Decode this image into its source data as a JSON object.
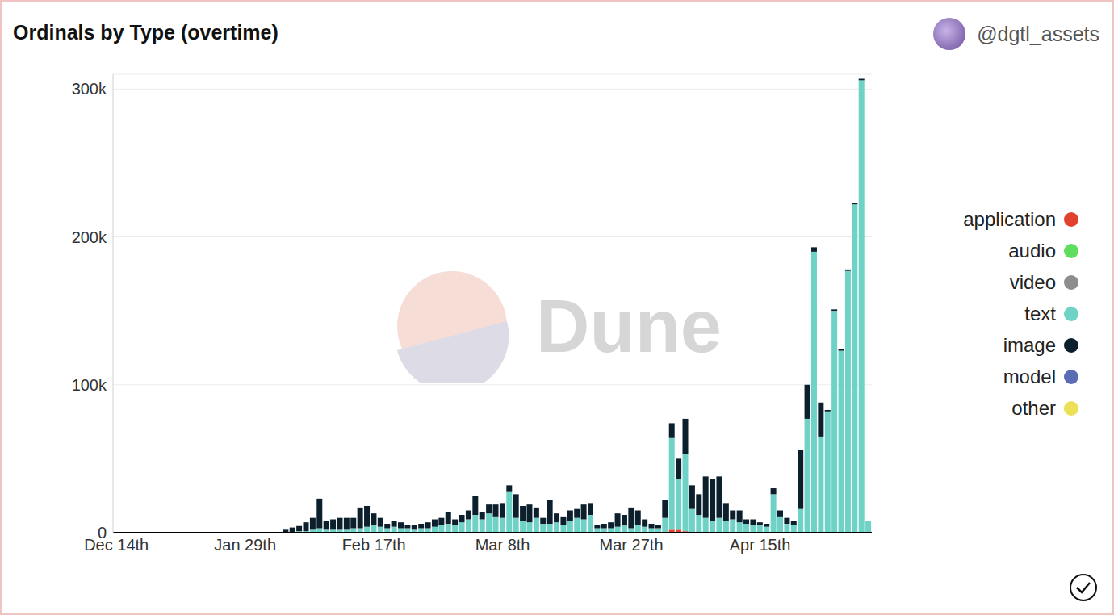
{
  "chart_data": {
    "type": "bar",
    "title": "Ordinals by Type (overtime)",
    "subtitle": "@dgtl_assets",
    "annotations": [
      "Dune"
    ],
    "stacked": true,
    "grid": true,
    "legend": "right",
    "categories": [
      "Dec 14th",
      null,
      null,
      null,
      null,
      null,
      null,
      null,
      null,
      null,
      null,
      null,
      null,
      null,
      null,
      null,
      null,
      null,
      null,
      "Jan 29th",
      null,
      null,
      null,
      null,
      null,
      null,
      null,
      null,
      null,
      null,
      null,
      null,
      null,
      null,
      null,
      null,
      null,
      null,
      "Feb 17th",
      null,
      null,
      null,
      null,
      null,
      null,
      null,
      null,
      null,
      null,
      null,
      null,
      null,
      null,
      null,
      null,
      null,
      null,
      "Mar 8th",
      null,
      null,
      null,
      null,
      null,
      null,
      null,
      null,
      null,
      null,
      null,
      null,
      null,
      null,
      null,
      null,
      null,
      null,
      "Mar 27th",
      null,
      null,
      null,
      null,
      null,
      null,
      null,
      null,
      null,
      null,
      null,
      null,
      null,
      null,
      null,
      null,
      null,
      null,
      "Apr 15th",
      null,
      null,
      null,
      null,
      null,
      null,
      null,
      null,
      null,
      null,
      null,
      null,
      null,
      null,
      null,
      null
    ],
    "ylim": [
      0,
      310000
    ],
    "yticks": [
      0,
      {
        "value": 100000,
        "label": "100k"
      },
      {
        "value": 200000,
        "label": "200k"
      },
      {
        "value": 300000,
        "label": "300k"
      }
    ],
    "series": [
      {
        "name": "application",
        "color": "#e3412f",
        "values": [
          0,
          0,
          0,
          0,
          0,
          0,
          0,
          0,
          0,
          0,
          0,
          0,
          0,
          0,
          0,
          0,
          0,
          0,
          0,
          0,
          0,
          0,
          0,
          0,
          0,
          0,
          0,
          0,
          0,
          0,
          0,
          0,
          0,
          0,
          0,
          0,
          0,
          0,
          0,
          0,
          0,
          0,
          0,
          0,
          0,
          0,
          0,
          0,
          0,
          0,
          0,
          0,
          0,
          0,
          0,
          0,
          0,
          0,
          0,
          0,
          0,
          0,
          0,
          0,
          0,
          0,
          0,
          0,
          0,
          0,
          0,
          0,
          0,
          0,
          0,
          0,
          0,
          0,
          0,
          0,
          0,
          0,
          2000,
          2000,
          1000,
          0,
          0,
          0,
          0,
          0,
          0,
          0,
          0,
          0,
          0,
          0,
          0,
          0,
          0,
          0,
          0,
          0,
          0,
          0,
          0,
          0,
          0,
          0,
          0,
          0,
          0,
          0
        ]
      },
      {
        "name": "audio",
        "color": "#5fdd5f",
        "values": [
          0,
          0,
          0,
          0,
          0,
          0,
          0,
          0,
          0,
          0,
          0,
          0,
          0,
          0,
          0,
          0,
          0,
          0,
          0,
          0,
          0,
          0,
          0,
          0,
          0,
          0,
          0,
          0,
          0,
          0,
          0,
          0,
          0,
          0,
          0,
          0,
          0,
          0,
          0,
          0,
          0,
          0,
          0,
          0,
          0,
          0,
          0,
          0,
          0,
          0,
          0,
          0,
          0,
          0,
          0,
          0,
          0,
          0,
          0,
          0,
          0,
          0,
          0,
          0,
          0,
          0,
          0,
          0,
          0,
          0,
          0,
          0,
          0,
          0,
          0,
          0,
          0,
          0,
          0,
          0,
          0,
          0,
          0,
          0,
          0,
          0,
          0,
          0,
          0,
          0,
          0,
          0,
          0,
          0,
          0,
          0,
          0,
          0,
          0,
          0,
          0,
          0,
          0,
          0,
          0,
          0,
          0,
          0,
          0,
          0,
          0,
          0
        ]
      },
      {
        "name": "video",
        "color": "#8d8d8d",
        "values": [
          0,
          0,
          0,
          0,
          0,
          0,
          0,
          0,
          0,
          0,
          0,
          0,
          0,
          0,
          0,
          0,
          0,
          0,
          0,
          0,
          0,
          0,
          0,
          0,
          0,
          0,
          0,
          0,
          0,
          0,
          0,
          0,
          0,
          0,
          0,
          0,
          0,
          0,
          0,
          0,
          0,
          0,
          0,
          0,
          0,
          0,
          0,
          0,
          0,
          0,
          0,
          0,
          0,
          0,
          0,
          0,
          0,
          0,
          0,
          0,
          0,
          0,
          0,
          0,
          0,
          0,
          0,
          0,
          0,
          0,
          0,
          0,
          0,
          0,
          0,
          0,
          0,
          0,
          0,
          0,
          0,
          0,
          0,
          0,
          0,
          0,
          0,
          0,
          0,
          0,
          0,
          0,
          0,
          0,
          0,
          0,
          0,
          0,
          0,
          0,
          0,
          0,
          0,
          0,
          0,
          0,
          0,
          0,
          0,
          0,
          0,
          0
        ]
      },
      {
        "name": "text",
        "color": "#6fd2c6",
        "values": [
          0,
          0,
          0,
          0,
          0,
          0,
          0,
          0,
          0,
          0,
          0,
          0,
          0,
          0,
          0,
          0,
          0,
          0,
          0,
          0,
          0,
          0,
          0,
          0,
          0,
          500,
          500,
          1000,
          1000,
          2000,
          3000,
          2000,
          2000,
          2000,
          2000,
          3000,
          3000,
          4000,
          5000,
          4000,
          3000,
          4000,
          3000,
          3000,
          2000,
          3000,
          3000,
          4000,
          5000,
          6000,
          5000,
          7000,
          9000,
          12000,
          9000,
          13000,
          11000,
          10000,
          28000,
          10000,
          8000,
          7000,
          10000,
          6000,
          6000,
          7000,
          5000,
          8000,
          10000,
          9000,
          12000,
          3000,
          3000,
          3000,
          4000,
          5000,
          3000,
          5000,
          4000,
          3000,
          3000,
          10000,
          62000,
          34000,
          52000,
          16000,
          12000,
          10000,
          8000,
          10000,
          8000,
          9000,
          7000,
          6000,
          5000,
          5000,
          4000,
          26000,
          11000,
          6000,
          5000,
          16000,
          77000,
          190000,
          65000,
          82000,
          150000,
          123000,
          177000,
          222000,
          306000,
          8000
        ]
      },
      {
        "name": "image",
        "color": "#0c1f2d",
        "values": [
          0,
          0,
          0,
          0,
          0,
          0,
          0,
          0,
          0,
          0,
          0,
          0,
          0,
          0,
          0,
          0,
          0,
          0,
          0,
          0,
          0,
          0,
          0,
          0,
          0,
          1500,
          3000,
          3500,
          6000,
          8000,
          20000,
          6000,
          7000,
          8000,
          8000,
          7000,
          14000,
          14000,
          8000,
          6000,
          3000,
          4000,
          4000,
          2000,
          3000,
          3000,
          4000,
          5000,
          5000,
          8000,
          4000,
          5000,
          6000,
          13000,
          5000,
          6000,
          8000,
          10000,
          4000,
          16000,
          10000,
          12000,
          7000,
          4000,
          16000,
          6000,
          6000,
          7000,
          6000,
          10000,
          8000,
          2000,
          3000,
          4000,
          9000,
          7000,
          14000,
          10000,
          5000,
          3000,
          2000,
          12000,
          10000,
          14000,
          24000,
          16000,
          14000,
          28000,
          28000,
          28000,
          12000,
          6000,
          8000,
          3000,
          4000,
          2000,
          2000,
          4000,
          4000,
          4000,
          3000,
          40000,
          23000,
          3000,
          23000,
          1000,
          1000,
          1000,
          1000,
          1000,
          1000,
          0
        ]
      },
      {
        "name": "model",
        "color": "#5b6cb4",
        "values": [
          0,
          0,
          0,
          0,
          0,
          0,
          0,
          0,
          0,
          0,
          0,
          0,
          0,
          0,
          0,
          0,
          0,
          0,
          0,
          0,
          0,
          0,
          0,
          0,
          0,
          0,
          0,
          0,
          0,
          0,
          0,
          0,
          0,
          0,
          0,
          0,
          0,
          0,
          0,
          0,
          0,
          0,
          0,
          0,
          0,
          0,
          0,
          0,
          0,
          0,
          0,
          0,
          0,
          0,
          0,
          0,
          0,
          0,
          0,
          0,
          0,
          0,
          0,
          0,
          0,
          0,
          0,
          0,
          0,
          0,
          0,
          0,
          0,
          0,
          0,
          0,
          0,
          0,
          0,
          0,
          0,
          0,
          0,
          0,
          0,
          0,
          0,
          0,
          0,
          0,
          0,
          0,
          0,
          0,
          0,
          0,
          0,
          0,
          0,
          0,
          0,
          0,
          0,
          0,
          0,
          0,
          0,
          0,
          0,
          0,
          0,
          0
        ]
      },
      {
        "name": "other",
        "color": "#ebe056",
        "values": [
          0,
          0,
          0,
          0,
          0,
          0,
          0,
          0,
          0,
          0,
          0,
          0,
          0,
          0,
          0,
          0,
          0,
          0,
          0,
          0,
          0,
          0,
          0,
          0,
          0,
          0,
          0,
          0,
          0,
          0,
          0,
          0,
          0,
          0,
          0,
          0,
          0,
          0,
          0,
          0,
          0,
          0,
          0,
          0,
          0,
          0,
          0,
          0,
          0,
          0,
          0,
          0,
          0,
          0,
          0,
          0,
          0,
          0,
          0,
          0,
          0,
          0,
          0,
          0,
          0,
          0,
          0,
          0,
          0,
          0,
          0,
          0,
          0,
          0,
          0,
          0,
          0,
          0,
          0,
          0,
          0,
          0,
          0,
          0,
          0,
          0,
          0,
          0,
          0,
          0,
          0,
          0,
          0,
          0,
          0,
          0,
          0,
          0,
          0,
          0,
          0,
          0,
          0,
          0,
          0,
          0,
          0,
          0,
          0,
          0,
          0,
          0
        ]
      }
    ]
  }
}
